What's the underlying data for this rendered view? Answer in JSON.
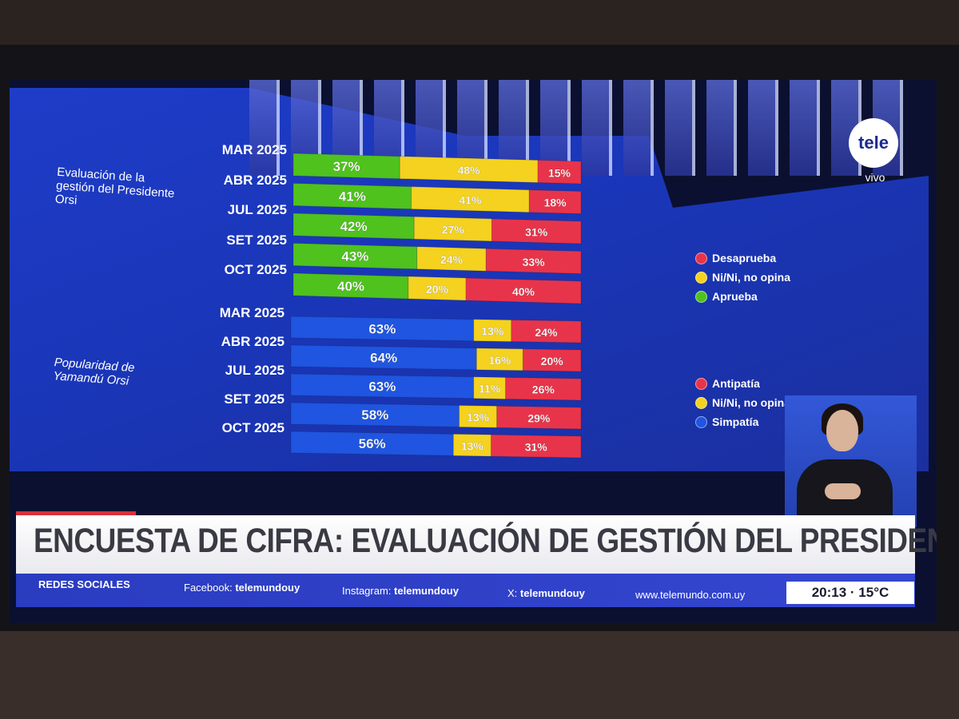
{
  "channel": {
    "logo_text": "tele",
    "status": "vivo"
  },
  "sections": {
    "gestion_label": "Evaluación de la gestión del Presidente Orsi",
    "popularidad_label": "Popularidad de Yamandú Orsi"
  },
  "legend_gestion": [
    {
      "label": "Desaprueba",
      "color": "#e8344a"
    },
    {
      "label": "Ni/Ni, no opina",
      "color": "#f4d21f"
    },
    {
      "label": "Aprueba",
      "color": "#4fc21e"
    }
  ],
  "legend_popularidad": [
    {
      "label": "Antipatía",
      "color": "#e8344a"
    },
    {
      "label": "Ni/Ni, no opina",
      "color": "#f4d21f"
    },
    {
      "label": "Simpatía",
      "color": "#1f55e0"
    }
  ],
  "chart_data": [
    {
      "type": "bar",
      "stacked": true,
      "orientation": "horizontal",
      "title": "Evaluación de la gestión del Presidente Orsi",
      "categories": [
        "MAR 2025",
        "ABR 2025",
        "JUL 2025",
        "SET 2025",
        "OCT 2025"
      ],
      "series": [
        {
          "name": "Aprueba",
          "color": "#4fc21e",
          "values": [
            37,
            41,
            42,
            43,
            40
          ]
        },
        {
          "name": "Ni/Ni, no opina",
          "color": "#f4d21f",
          "values": [
            48,
            41,
            27,
            24,
            20
          ]
        },
        {
          "name": "Desaprueba",
          "color": "#e8344a",
          "values": [
            15,
            18,
            31,
            33,
            40
          ]
        }
      ],
      "labels": [
        [
          "37%",
          "48%",
          "15%"
        ],
        [
          "41%",
          "41%",
          "18%"
        ],
        [
          "42%",
          "27%",
          "31%"
        ],
        [
          "43%",
          "24%",
          "33%"
        ],
        [
          "40%",
          "20%",
          "40%"
        ]
      ]
    },
    {
      "type": "bar",
      "stacked": true,
      "orientation": "horizontal",
      "title": "Popularidad de Yamandú Orsi",
      "categories": [
        "MAR 2025",
        "ABR 2025",
        "JUL 2025",
        "SET 2025",
        "OCT 2025"
      ],
      "series": [
        {
          "name": "Simpatía",
          "color": "#1f55e0",
          "values": [
            63,
            64,
            63,
            58,
            56
          ]
        },
        {
          "name": "Ni/Ni, no opina",
          "color": "#f4d21f",
          "values": [
            13,
            16,
            11,
            13,
            13
          ]
        },
        {
          "name": "Antipatía",
          "color": "#e8344a",
          "values": [
            24,
            20,
            26,
            29,
            31
          ]
        }
      ],
      "labels": [
        [
          "63%",
          "13%",
          "24%"
        ],
        [
          "64%",
          "16%",
          "20%"
        ],
        [
          "63%",
          "11%",
          "26%"
        ],
        [
          "58%",
          "13%",
          "29%"
        ],
        [
          "56%",
          "13%",
          "31%"
        ]
      ]
    }
  ],
  "headline": "ENCUESTA DE CIFRA: EVALUACIÓN DE GESTIÓN DEL PRESIDENTE ORSI",
  "ticker": {
    "section": "REDES SOCIALES",
    "facebook_label": "Facebook:",
    "facebook": "telemundouy",
    "instagram_label": "Instagram:",
    "instagram": "telemundouy",
    "x_label": "X:",
    "x": "telemundouy",
    "website": "www.telemundo.com.uy"
  },
  "clock": "20:13 · 15°C"
}
